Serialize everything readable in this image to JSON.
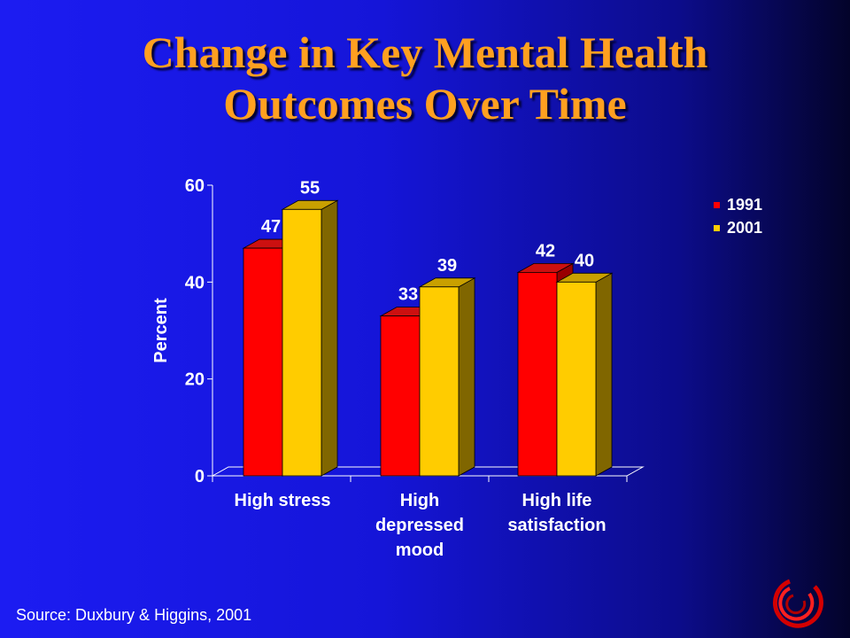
{
  "title": {
    "line1": "Change in Key Mental Health",
    "line2": "Outcomes Over Time"
  },
  "chart_data": {
    "type": "bar",
    "categories": [
      [
        "High stress"
      ],
      [
        "High",
        "depressed",
        "mood"
      ],
      [
        "High life",
        "satisfaction"
      ]
    ],
    "series": [
      {
        "name": "1991",
        "values": [
          47,
          33,
          42
        ],
        "color": "#ff0000",
        "side_color": "#990000",
        "top_color": "#cc1010"
      },
      {
        "name": "2001",
        "values": [
          55,
          39,
          40
        ],
        "color": "#ffcc00",
        "side_color": "#806600",
        "top_color": "#c9a000"
      }
    ],
    "ylabel": "Percent",
    "xlabel": "",
    "ylim": [
      0,
      60
    ],
    "yticks": [
      0,
      20,
      40,
      60
    ],
    "legend": "top-right",
    "grid": false
  },
  "source": "Source: Duxbury & Higgins, 2001"
}
